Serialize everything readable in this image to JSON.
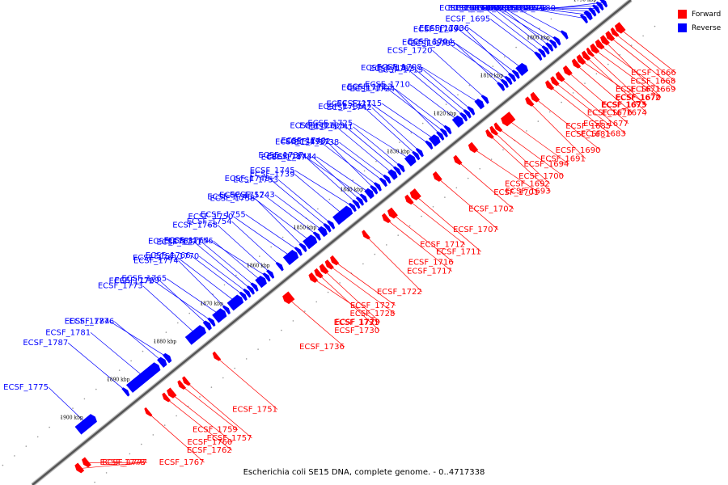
{
  "caption": "Escherichia coli SE15 DNA, complete genome. - 0..4717338",
  "legend": {
    "forward": {
      "label": "Forward",
      "color": "#ff0000"
    },
    "reverse": {
      "label": "Reverse",
      "color": "#0000ff"
    }
  },
  "colors": {
    "forward": "#ff0000",
    "reverse": "#0000ff",
    "backbone": "#555555"
  },
  "track": {
    "kbp_start": 1785,
    "kbp_end": 1910
  },
  "ticks": [
    "1790 kbp",
    "1800 kbp",
    "1810 kbp",
    "1820 kbp",
    "1830 kbp",
    "1840 kbp",
    "1850 kbp",
    "1860 kbp",
    "1870 kbp",
    "1880 kbp",
    "1890 kbp",
    "1900 kbp"
  ],
  "genes": [
    {
      "name": "ECSF_1666",
      "strand": "forward",
      "start": 1787.2,
      "end": 1788.4
    },
    {
      "name": "ECSF_1668",
      "strand": "forward",
      "start": 1788.6,
      "end": 1789.3
    },
    {
      "name": "ECSF_1669",
      "strand": "forward",
      "start": 1789.5,
      "end": 1790.4
    },
    {
      "name": "ECSF_1670",
      "strand": "forward",
      "start": 1790.6,
      "end": 1791.5
    },
    {
      "name": "ECSF_1671",
      "strand": "forward",
      "start": 1791.7,
      "end": 1792.6
    },
    {
      "name": "ECSF_1672",
      "strand": "forward",
      "start": 1792.8,
      "end": 1793.7
    },
    {
      "name": "ECSF_1673",
      "strand": "forward",
      "start": 1793.9,
      "end": 1794.5
    },
    {
      "name": "ECSF_1674",
      "strand": "forward",
      "start": 1794.7,
      "end": 1795.5
    },
    {
      "name": "ECSF_1675",
      "strand": "forward",
      "start": 1795.7,
      "end": 1796.6
    },
    {
      "name": "ECSF_1676",
      "strand": "forward",
      "start": 1796.8,
      "end": 1797.6
    },
    {
      "name": "ECSF_1677",
      "strand": "forward",
      "start": 1798.6,
      "end": 1799.5
    },
    {
      "name": "ECSF_1683",
      "strand": "forward",
      "start": 1800.2,
      "end": 1801.1
    },
    {
      "name": "ECSF_1685",
      "strand": "forward",
      "start": 1801.4,
      "end": 1802.2
    },
    {
      "name": "ECSF_1681",
      "strand": "forward",
      "start": 1802.5,
      "end": 1803.3
    },
    {
      "name": "ECSF_1690",
      "strand": "forward",
      "start": 1805.6,
      "end": 1806.5
    },
    {
      "name": "ECSF_1691",
      "strand": "forward",
      "start": 1806.8,
      "end": 1807.6
    },
    {
      "name": "ECSF_1694",
      "strand": "forward",
      "start": 1810.8,
      "end": 1812.8
    },
    {
      "name": "ECSF_1700",
      "strand": "forward",
      "start": 1813.6,
      "end": 1814.3
    },
    {
      "name": "ECSF_1692",
      "strand": "forward",
      "start": 1814.5,
      "end": 1815.2
    },
    {
      "name": "ECSF_1693",
      "strand": "forward",
      "start": 1815.4,
      "end": 1816.1
    },
    {
      "name": "ECSF_1701",
      "strand": "forward",
      "start": 1818.8,
      "end": 1819.8
    },
    {
      "name": "ECSF_1702",
      "strand": "forward",
      "start": 1822.2,
      "end": 1823.0
    },
    {
      "name": "ECSF_1707",
      "strand": "forward",
      "start": 1826.5,
      "end": 1827.4
    },
    {
      "name": "ECSF_1711",
      "strand": "forward",
      "start": 1831.0,
      "end": 1832.3
    },
    {
      "name": "ECSF_1712",
      "strand": "forward",
      "start": 1832.6,
      "end": 1833.4
    },
    {
      "name": "ECSF_1716",
      "strand": "forward",
      "start": 1836.0,
      "end": 1837.1
    },
    {
      "name": "ECSF_1717",
      "strand": "forward",
      "start": 1837.5,
      "end": 1838.3
    },
    {
      "name": "ECSF_1722",
      "strand": "forward",
      "start": 1841.9,
      "end": 1842.6
    },
    {
      "name": "ECSF_1727",
      "strand": "forward",
      "start": 1848.6,
      "end": 1849.4
    },
    {
      "name": "ECSF_1728",
      "strand": "forward",
      "start": 1849.7,
      "end": 1850.5
    },
    {
      "name": "ECSF_1729",
      "strand": "forward",
      "start": 1850.8,
      "end": 1851.7
    },
    {
      "name": "ECSF_1730",
      "strand": "forward",
      "start": 1852.0,
      "end": 1852.8
    },
    {
      "name": "ECSF_1731",
      "strand": "forward",
      "start": 1853.1,
      "end": 1854.0
    },
    {
      "name": "ECSF_1736",
      "strand": "forward",
      "start": 1858.1,
      "end": 1859.6
    },
    {
      "name": "ECSF_1751",
      "strand": "forward",
      "start": 1873.9,
      "end": 1874.6
    },
    {
      "name": "ECSF_1757",
      "strand": "forward",
      "start": 1880.4,
      "end": 1881.1
    },
    {
      "name": "ECSF_1759",
      "strand": "forward",
      "start": 1881.4,
      "end": 1882.1
    },
    {
      "name": "ECSF_1760",
      "strand": "forward",
      "start": 1883.4,
      "end": 1884.4
    },
    {
      "name": "ECSF_1762",
      "strand": "forward",
      "start": 1884.7,
      "end": 1885.4
    },
    {
      "name": "ECSF_1767",
      "strand": "forward",
      "start": 1888.6,
      "end": 1889.2
    },
    {
      "name": "ECSF_1777",
      "strand": "forward",
      "start": 1901.7,
      "end": 1902.6
    },
    {
      "name": "ECSF_1778",
      "strand": "forward",
      "start": 1903.2,
      "end": 1904.1
    },
    {
      "name": "ECSF_1680",
      "strand": "reverse",
      "start": 1786.6,
      "end": 1787.2
    },
    {
      "name": "ECSF_1678",
      "strand": "reverse",
      "start": 1787.4,
      "end": 1788.0
    },
    {
      "name": "ECSF_1686",
      "strand": "reverse",
      "start": 1788.2,
      "end": 1788.8
    },
    {
      "name": "ECSF_1679",
      "strand": "reverse",
      "start": 1789.0,
      "end": 1789.6
    },
    {
      "name": "ECSF_1682",
      "strand": "reverse",
      "start": 1789.8,
      "end": 1790.6
    },
    {
      "name": "ECSF_1684",
      "strand": "reverse",
      "start": 1790.8,
      "end": 1791.4
    },
    {
      "name": "ECSF_1698",
      "strand": "reverse",
      "start": 1795.0,
      "end": 1795.6
    },
    {
      "name": "ECSF_1687",
      "strand": "reverse",
      "start": 1796.6,
      "end": 1797.2
    },
    {
      "name": "ECSF_1697",
      "strand": "reverse",
      "start": 1797.4,
      "end": 1798.0
    },
    {
      "name": "ECSF_1688",
      "strand": "reverse",
      "start": 1798.2,
      "end": 1798.8
    },
    {
      "name": "ECSF_1696",
      "strand": "reverse",
      "start": 1799.0,
      "end": 1799.6
    },
    {
      "name": "ECSF_1689",
      "strand": "reverse",
      "start": 1799.8,
      "end": 1800.4
    },
    {
      "name": "ECSF_1695",
      "strand": "reverse",
      "start": 1800.6,
      "end": 1801.2
    },
    {
      "name": "ECSF_1706",
      "strand": "reverse",
      "start": 1803.6,
      "end": 1805.2
    },
    {
      "name": "ECSF_1709",
      "strand": "reverse",
      "start": 1805.4,
      "end": 1806.0
    },
    {
      "name": "ECSF_1703",
      "strand": "reverse",
      "start": 1806.2,
      "end": 1806.8
    },
    {
      "name": "ECSF_1705",
      "strand": "reverse",
      "start": 1807.0,
      "end": 1807.6
    },
    {
      "name": "ECSF_1699",
      "strand": "reverse",
      "start": 1807.8,
      "end": 1808.4
    },
    {
      "name": "ECSF_1704",
      "strand": "reverse",
      "start": 1808.6,
      "end": 1809.2
    },
    {
      "name": "ECSF_1720",
      "strand": "reverse",
      "start": 1812.0,
      "end": 1812.6
    },
    {
      "name": "ECSF_1708",
      "strand": "reverse",
      "start": 1813.0,
      "end": 1814.0
    },
    {
      "name": "ECSF_1719",
      "strand": "reverse",
      "start": 1815.0,
      "end": 1815.6
    },
    {
      "name": "ECSF_1713",
      "strand": "reverse",
      "start": 1815.8,
      "end": 1816.4
    },
    {
      "name": "ECSF_1718",
      "strand": "reverse",
      "start": 1816.6,
      "end": 1817.2
    },
    {
      "name": "ECSF_1710",
      "strand": "reverse",
      "start": 1817.4,
      "end": 1818.8
    },
    {
      "name": "ECSF_1724",
      "strand": "reverse",
      "start": 1820.0,
      "end": 1820.6
    },
    {
      "name": "ECSF_1714",
      "strand": "reverse",
      "start": 1820.8,
      "end": 1821.4
    },
    {
      "name": "ECSF_1723",
      "strand": "reverse",
      "start": 1821.6,
      "end": 1822.2
    },
    {
      "name": "ECSF_1715",
      "strand": "reverse",
      "start": 1822.4,
      "end": 1823.8
    },
    {
      "name": "ECSF_1721",
      "strand": "reverse",
      "start": 1824.0,
      "end": 1824.6
    },
    {
      "name": "ECSF_1742",
      "strand": "reverse",
      "start": 1826.0,
      "end": 1826.6
    },
    {
      "name": "ECSF_1735",
      "strand": "reverse",
      "start": 1826.8,
      "end": 1827.4
    },
    {
      "name": "ECSF_1725",
      "strand": "reverse",
      "start": 1827.6,
      "end": 1829.0
    },
    {
      "name": "ECSF_1741",
      "strand": "reverse",
      "start": 1830.0,
      "end": 1830.6
    },
    {
      "name": "ECSF_1733",
      "strand": "reverse",
      "start": 1830.8,
      "end": 1831.4
    },
    {
      "name": "ECSF_1726",
      "strand": "reverse",
      "start": 1831.6,
      "end": 1832.6
    },
    {
      "name": "ECSF_1738",
      "strand": "reverse",
      "start": 1833.0,
      "end": 1833.6
    },
    {
      "name": "ECSF_1732",
      "strand": "reverse",
      "start": 1833.8,
      "end": 1834.4
    },
    {
      "name": "ECSF_1749",
      "strand": "reverse",
      "start": 1835.0,
      "end": 1835.6
    },
    {
      "name": "ECSF_1740",
      "strand": "reverse",
      "start": 1835.8,
      "end": 1836.4
    },
    {
      "name": "ECSF_1734",
      "strand": "reverse",
      "start": 1836.6,
      "end": 1837.6
    },
    {
      "name": "ECSF_1747",
      "strand": "reverse",
      "start": 1838.0,
      "end": 1838.6
    },
    {
      "name": "ECSF_1744",
      "strand": "reverse",
      "start": 1838.8,
      "end": 1839.4
    },
    {
      "name": "ECSF_1737",
      "strand": "reverse",
      "start": 1839.6,
      "end": 1840.2
    },
    {
      "name": "ECSF_1745",
      "strand": "reverse",
      "start": 1840.4,
      "end": 1841.0
    },
    {
      "name": "ECSF_1739",
      "strand": "reverse",
      "start": 1841.2,
      "end": 1844.4
    },
    {
      "name": "ECSF_1753",
      "strand": "reverse",
      "start": 1845.0,
      "end": 1845.6
    },
    {
      "name": "ECSF_1748",
      "strand": "reverse",
      "start": 1845.8,
      "end": 1846.4
    },
    {
      "name": "ECSF_1743",
      "strand": "reverse",
      "start": 1846.6,
      "end": 1847.6
    },
    {
      "name": "ECSF_1752",
      "strand": "reverse",
      "start": 1848.0,
      "end": 1848.6
    },
    {
      "name": "ECSF_1746",
      "strand": "reverse",
      "start": 1848.8,
      "end": 1850.8
    },
    {
      "name": "ECSF_1758",
      "strand": "reverse",
      "start": 1851.0,
      "end": 1851.6
    },
    {
      "name": "ECSF_1755",
      "strand": "reverse",
      "start": 1852.0,
      "end": 1852.6
    },
    {
      "name": "ECSF_1750",
      "strand": "reverse",
      "start": 1852.8,
      "end": 1855.0
    },
    {
      "name": "ECSF_1754",
      "strand": "reverse",
      "start": 1856.0,
      "end": 1856.6
    },
    {
      "name": "ECSF_1768",
      "strand": "reverse",
      "start": 1858.0,
      "end": 1858.6
    },
    {
      "name": "ECSF_1764",
      "strand": "reverse",
      "start": 1858.8,
      "end": 1859.4
    },
    {
      "name": "ECSF_1756",
      "strand": "reverse",
      "start": 1859.6,
      "end": 1861.0
    },
    {
      "name": "ECSF_1771",
      "strand": "reverse",
      "start": 1861.4,
      "end": 1862.0
    },
    {
      "name": "ECSF_1763",
      "strand": "reverse",
      "start": 1862.2,
      "end": 1862.8
    },
    {
      "name": "ECSF_1770",
      "strand": "reverse",
      "start": 1863.0,
      "end": 1863.6
    },
    {
      "name": "ECSF_1766",
      "strand": "reverse",
      "start": 1863.8,
      "end": 1864.4
    },
    {
      "name": "ECSF_1761",
      "strand": "reverse",
      "start": 1864.6,
      "end": 1867.0
    },
    {
      "name": "ECSF_1774",
      "strand": "reverse",
      "start": 1867.4,
      "end": 1868.0
    },
    {
      "name": "ECSF_1765",
      "strand": "reverse",
      "start": 1868.2,
      "end": 1870.2
    },
    {
      "name": "ECSF_1772",
      "strand": "reverse",
      "start": 1870.6,
      "end": 1871.2
    },
    {
      "name": "ECSF_1769",
      "strand": "reverse",
      "start": 1871.4,
      "end": 1872.2
    },
    {
      "name": "ECSF_1773",
      "strand": "reverse",
      "start": 1872.6,
      "end": 1876.0
    },
    {
      "name": "ECSF_1784",
      "strand": "reverse",
      "start": 1880.0,
      "end": 1880.8
    },
    {
      "name": "ECSF_1776",
      "strand": "reverse",
      "start": 1881.0,
      "end": 1882.0
    },
    {
      "name": "ECSF_1781",
      "strand": "reverse",
      "start": 1882.4,
      "end": 1888.6
    },
    {
      "name": "ECSF_1787",
      "strand": "reverse",
      "start": 1889.0,
      "end": 1889.6
    },
    {
      "name": "ECSF_1775",
      "strand": "reverse",
      "start": 1896.0,
      "end": 1899.6
    }
  ]
}
